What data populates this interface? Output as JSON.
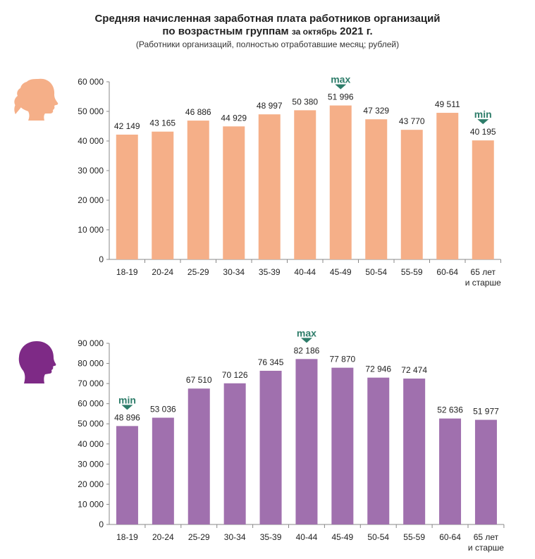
{
  "header": {
    "title_line1": "Средняя начисленная заработная плата работников организаций",
    "title_line2_main": "по возрастным группам",
    "title_line2_small": "за октябрь",
    "title_line2_year": "2021 г.",
    "subtitle": "(Работники организаций, полностью отработавшие месяц; рублей)"
  },
  "icons": {
    "female": "female-head-icon",
    "male": "male-head-icon"
  },
  "chart_data": [
    {
      "type": "bar",
      "group": "female",
      "color": "#F5AF88",
      "categories": [
        "18-19",
        "20-24",
        "25-29",
        "30-34",
        "35-39",
        "40-44",
        "45-49",
        "50-54",
        "55-59",
        "60-64",
        "65 лет и старше"
      ],
      "values": [
        42149,
        43165,
        46886,
        44929,
        48997,
        50380,
        51996,
        47329,
        43770,
        49511,
        40195
      ],
      "value_labels": [
        "42 149",
        "43 165",
        "46 886",
        "44 929",
        "48 997",
        "50 380",
        "51 996",
        "47 329",
        "43 770",
        "49 511",
        "40 195"
      ],
      "ylim": [
        0,
        60000
      ],
      "yticks": [
        0,
        10000,
        20000,
        30000,
        40000,
        50000,
        60000
      ],
      "ytick_labels": [
        "0",
        "10 000",
        "20 000",
        "30 000",
        "40 000",
        "50 000",
        "60 000"
      ],
      "annotations": [
        {
          "category_index": 6,
          "text": "max"
        },
        {
          "category_index": 10,
          "text": "min"
        }
      ],
      "grid": false
    },
    {
      "type": "bar",
      "group": "male",
      "color": "#A070AE",
      "categories": [
        "18-19",
        "20-24",
        "25-29",
        "30-34",
        "35-39",
        "40-44",
        "45-49",
        "50-54",
        "55-59",
        "60-64",
        "65 лет и старше"
      ],
      "values": [
        48896,
        53036,
        67510,
        70126,
        76345,
        82186,
        77870,
        72946,
        72474,
        52636,
        51977
      ],
      "value_labels": [
        "48 896",
        "53 036",
        "67 510",
        "70 126",
        "76 345",
        "82 186",
        "77 870",
        "72 946",
        "72 474",
        "52 636",
        "51 977"
      ],
      "ylim": [
        0,
        90000
      ],
      "yticks": [
        0,
        10000,
        20000,
        30000,
        40000,
        50000,
        60000,
        70000,
        80000,
        90000
      ],
      "ytick_labels": [
        "0",
        "10 000",
        "20 000",
        "30 000",
        "40 000",
        "50 000",
        "60 000",
        "70 000",
        "80 000",
        "90 000"
      ],
      "annotations": [
        {
          "category_index": 5,
          "text": "max"
        },
        {
          "category_index": 0,
          "text": "min"
        }
      ],
      "grid": false
    }
  ]
}
